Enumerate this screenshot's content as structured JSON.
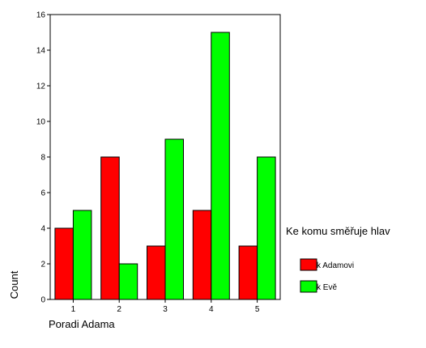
{
  "chart_data": {
    "type": "bar",
    "categories": [
      "1",
      "2",
      "3",
      "4",
      "5"
    ],
    "series": [
      {
        "name": "k Adamovi",
        "color": "#ff0000",
        "values": [
          4,
          8,
          3,
          5,
          3
        ]
      },
      {
        "name": "k Evě",
        "color": "#00ff00",
        "values": [
          5,
          2,
          9,
          15,
          8
        ]
      }
    ],
    "xlabel": "Poradi Adama",
    "ylabel": "Count",
    "ylim": [
      0,
      16
    ],
    "yticks": [
      "0",
      "2",
      "4",
      "6",
      "8",
      "10",
      "12",
      "14",
      "16"
    ],
    "legend_title": "Ke komu směřuje hlav",
    "legend_position": "right",
    "grid": false
  }
}
